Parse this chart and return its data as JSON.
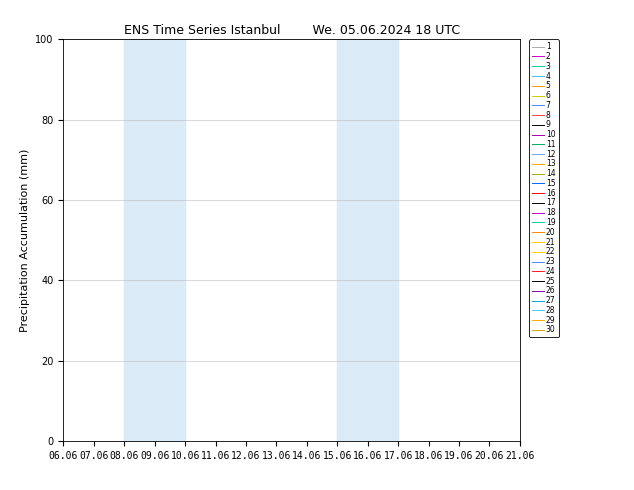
{
  "title": "ENS Time Series Istanbul        We. 05.06.2024 18 UTC",
  "ylabel": "Precipitation Accumulation (mm)",
  "ylim": [
    0,
    100
  ],
  "yticks": [
    0,
    20,
    40,
    60,
    80,
    100
  ],
  "x_labels": [
    "06.06",
    "07.06",
    "08.06",
    "09.06",
    "10.06",
    "11.06",
    "12.06",
    "13.06",
    "14.06",
    "15.06",
    "16.06",
    "17.06",
    "18.06",
    "19.06",
    "20.06",
    "21.06"
  ],
  "x_positions": [
    0,
    1,
    2,
    3,
    4,
    5,
    6,
    7,
    8,
    9,
    10,
    11,
    12,
    13,
    14,
    15
  ],
  "shaded_regions": [
    {
      "xmin": 2,
      "xmax": 4,
      "color": "#daeaf7"
    },
    {
      "xmin": 9,
      "xmax": 11,
      "color": "#daeaf7"
    }
  ],
  "member_colors": [
    "#aaaaaa",
    "#cc00cc",
    "#00ccaa",
    "#44bbff",
    "#ff9900",
    "#cccc00",
    "#4488ff",
    "#ff4444",
    "#000000",
    "#aa00aa",
    "#00aa66",
    "#66aaff",
    "#ffaa00",
    "#aaaa00",
    "#0066ff",
    "#ff0000",
    "#000000",
    "#cc00cc",
    "#00ccaa",
    "#ff8800",
    "#ffcc00",
    "#ffcc00",
    "#4488ff",
    "#ff2222",
    "#000000",
    "#8800aa",
    "#00aacc",
    "#44ccff",
    "#ffaa00",
    "#ccaa00"
  ],
  "num_members": 30,
  "figsize": [
    6.34,
    4.9
  ],
  "dpi": 100,
  "background_color": "#ffffff",
  "plot_bg_color": "#ffffff",
  "title_fontsize": 9,
  "label_fontsize": 8,
  "tick_fontsize": 7,
  "legend_fontsize": 5.5
}
